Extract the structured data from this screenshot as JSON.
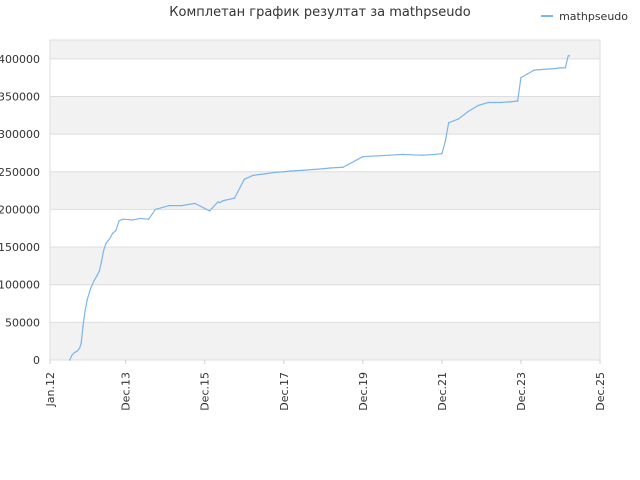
{
  "chart_data": {
    "type": "line",
    "title": "Комплетан график резултат за mathpseudo",
    "legend": {
      "position": "top-right",
      "entries": [
        "mathpseudo"
      ]
    },
    "grid": true,
    "colors": {
      "series": "#7cb5ec",
      "band": "#f2f2f2",
      "grid": "#dddddd",
      "axis": "#c9d1e0"
    },
    "x_axis": {
      "type": "date",
      "min": "2012-01-01",
      "max": "2025-12-01",
      "ticks": [
        "Jan.12",
        "Dec.13",
        "Dec.15",
        "Dec.17",
        "Dec.19",
        "Dec.21",
        "Dec.23",
        "Dec.25"
      ],
      "tick_dates": [
        "2012-01-01",
        "2013-12-01",
        "2015-12-01",
        "2017-12-01",
        "2019-12-01",
        "2021-12-01",
        "2023-12-01",
        "2025-12-01"
      ]
    },
    "y_axis": {
      "min": 0,
      "max": 425000,
      "ticks": [
        "0",
        "50000",
        "100000",
        "150000",
        "200000",
        "250000",
        "300000",
        "350000",
        "400000"
      ]
    },
    "series": [
      {
        "name": "mathpseudo",
        "x": [
          "2012-07-01",
          "2012-07-20",
          "2012-08-15",
          "2012-09-10",
          "2012-10-01",
          "2012-10-15",
          "2012-11-01",
          "2012-11-20",
          "2012-12-10",
          "2013-01-10",
          "2013-02-10",
          "2013-03-10",
          "2013-04-01",
          "2013-04-20",
          "2013-05-10",
          "2013-06-01",
          "2013-07-01",
          "2013-08-01",
          "2013-09-01",
          "2013-10-01",
          "2013-11-10",
          "2014-02-01",
          "2014-04-15",
          "2014-07-01",
          "2014-09-01",
          "2015-01-01",
          "2015-05-01",
          "2015-09-01",
          "2016-01-15",
          "2016-04-01",
          "2016-04-20",
          "2016-05-10",
          "2016-06-01",
          "2016-09-01",
          "2016-12-01",
          "2017-02-15",
          "2017-04-01",
          "2017-06-01",
          "2017-09-01",
          "2017-12-01",
          "2018-02-01",
          "2018-06-01",
          "2018-09-01",
          "2018-12-01",
          "2019-02-01",
          "2019-06-01",
          "2019-12-01",
          "2020-04-01",
          "2020-08-01",
          "2020-12-01",
          "2021-06-01",
          "2021-10-01",
          "2021-12-01",
          "2022-01-01",
          "2022-02-01",
          "2022-05-01",
          "2022-08-01",
          "2022-11-01",
          "2023-02-01",
          "2023-04-01",
          "2023-06-01",
          "2023-09-01",
          "2023-11-01",
          "2023-12-01",
          "2024-02-01",
          "2024-04-01",
          "2024-07-01",
          "2024-10-01",
          "2024-12-01",
          "2025-01-15",
          "2025-02-10",
          "2025-02-20"
        ],
        "values": [
          0,
          6000,
          10000,
          12000,
          16000,
          22000,
          45000,
          65000,
          80000,
          95000,
          105000,
          112000,
          118000,
          130000,
          145000,
          155000,
          160000,
          168000,
          172000,
          185000,
          187000,
          186000,
          188000,
          187000,
          200000,
          205000,
          205000,
          208000,
          198000,
          210000,
          209000,
          211000,
          212000,
          215000,
          240000,
          245000,
          246000,
          247000,
          249000,
          250000,
          251000,
          252000,
          253000,
          254000,
          255000,
          256000,
          270000,
          271000,
          272000,
          273000,
          272000,
          273000,
          274000,
          290000,
          315000,
          320000,
          330000,
          338000,
          342000,
          342000,
          342000,
          343000,
          344000,
          375000,
          380000,
          385000,
          386000,
          387000,
          388000,
          388000,
          404000,
          404000
        ]
      }
    ]
  }
}
